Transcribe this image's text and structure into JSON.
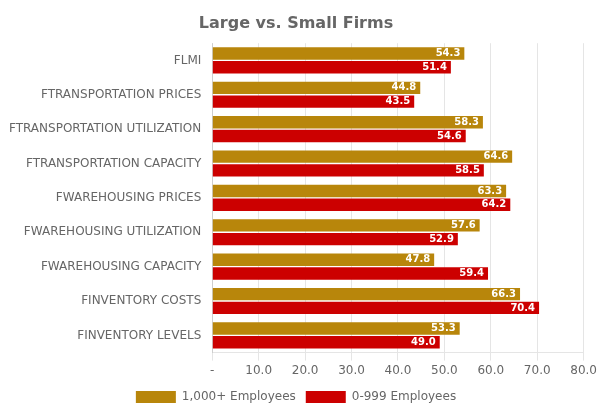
{
  "chart_data": {
    "type": "bar",
    "orientation": "horizontal",
    "title": "Large vs. Small Firms",
    "categories": [
      "FLMI",
      "FTRANSPORTATION PRICES",
      "FTRANSPORTATION UTILIZATION",
      "FTRANSPORTATION CAPACITY",
      "FWAREHOUSING PRICES",
      "FWAREHOUSING UTILIZATION",
      "FWAREHOUSING CAPACITY",
      "FINVENTORY COSTS",
      "FINVENTORY LEVELS"
    ],
    "series": [
      {
        "name": "1,000+ Employees",
        "color": "#B8860B",
        "values": [
          54.3,
          44.8,
          58.3,
          64.6,
          63.3,
          57.6,
          47.8,
          66.3,
          53.3
        ],
        "value_labels": [
          "54.3",
          "44.8",
          "58.3",
          "64.6",
          "63.3",
          "57.6",
          "47.8",
          "66.3",
          "53.3"
        ]
      },
      {
        "name": "0-999 Employees",
        "color": "#CC0000",
        "values": [
          51.4,
          43.5,
          54.6,
          58.5,
          64.2,
          52.9,
          59.4,
          70.4,
          49.0
        ],
        "value_labels": [
          "51.4",
          "43.5",
          "54.6",
          "58.5",
          "64.2",
          "52.9",
          "59.4",
          "70.4",
          "49.0"
        ]
      }
    ],
    "xlim": [
      0,
      80
    ],
    "xticks": [
      {
        "value": 0,
        "label": "-"
      },
      {
        "value": 10,
        "label": "10.0"
      },
      {
        "value": 20,
        "label": "20.0"
      },
      {
        "value": 30,
        "label": "30.0"
      },
      {
        "value": 40,
        "label": "40.0"
      },
      {
        "value": 50,
        "label": "50.0"
      },
      {
        "value": 60,
        "label": "60.0"
      },
      {
        "value": 70,
        "label": "70.0"
      },
      {
        "value": 80,
        "label": "80.0"
      }
    ],
    "grid": true,
    "legend": "bottom",
    "data_labels": true
  }
}
